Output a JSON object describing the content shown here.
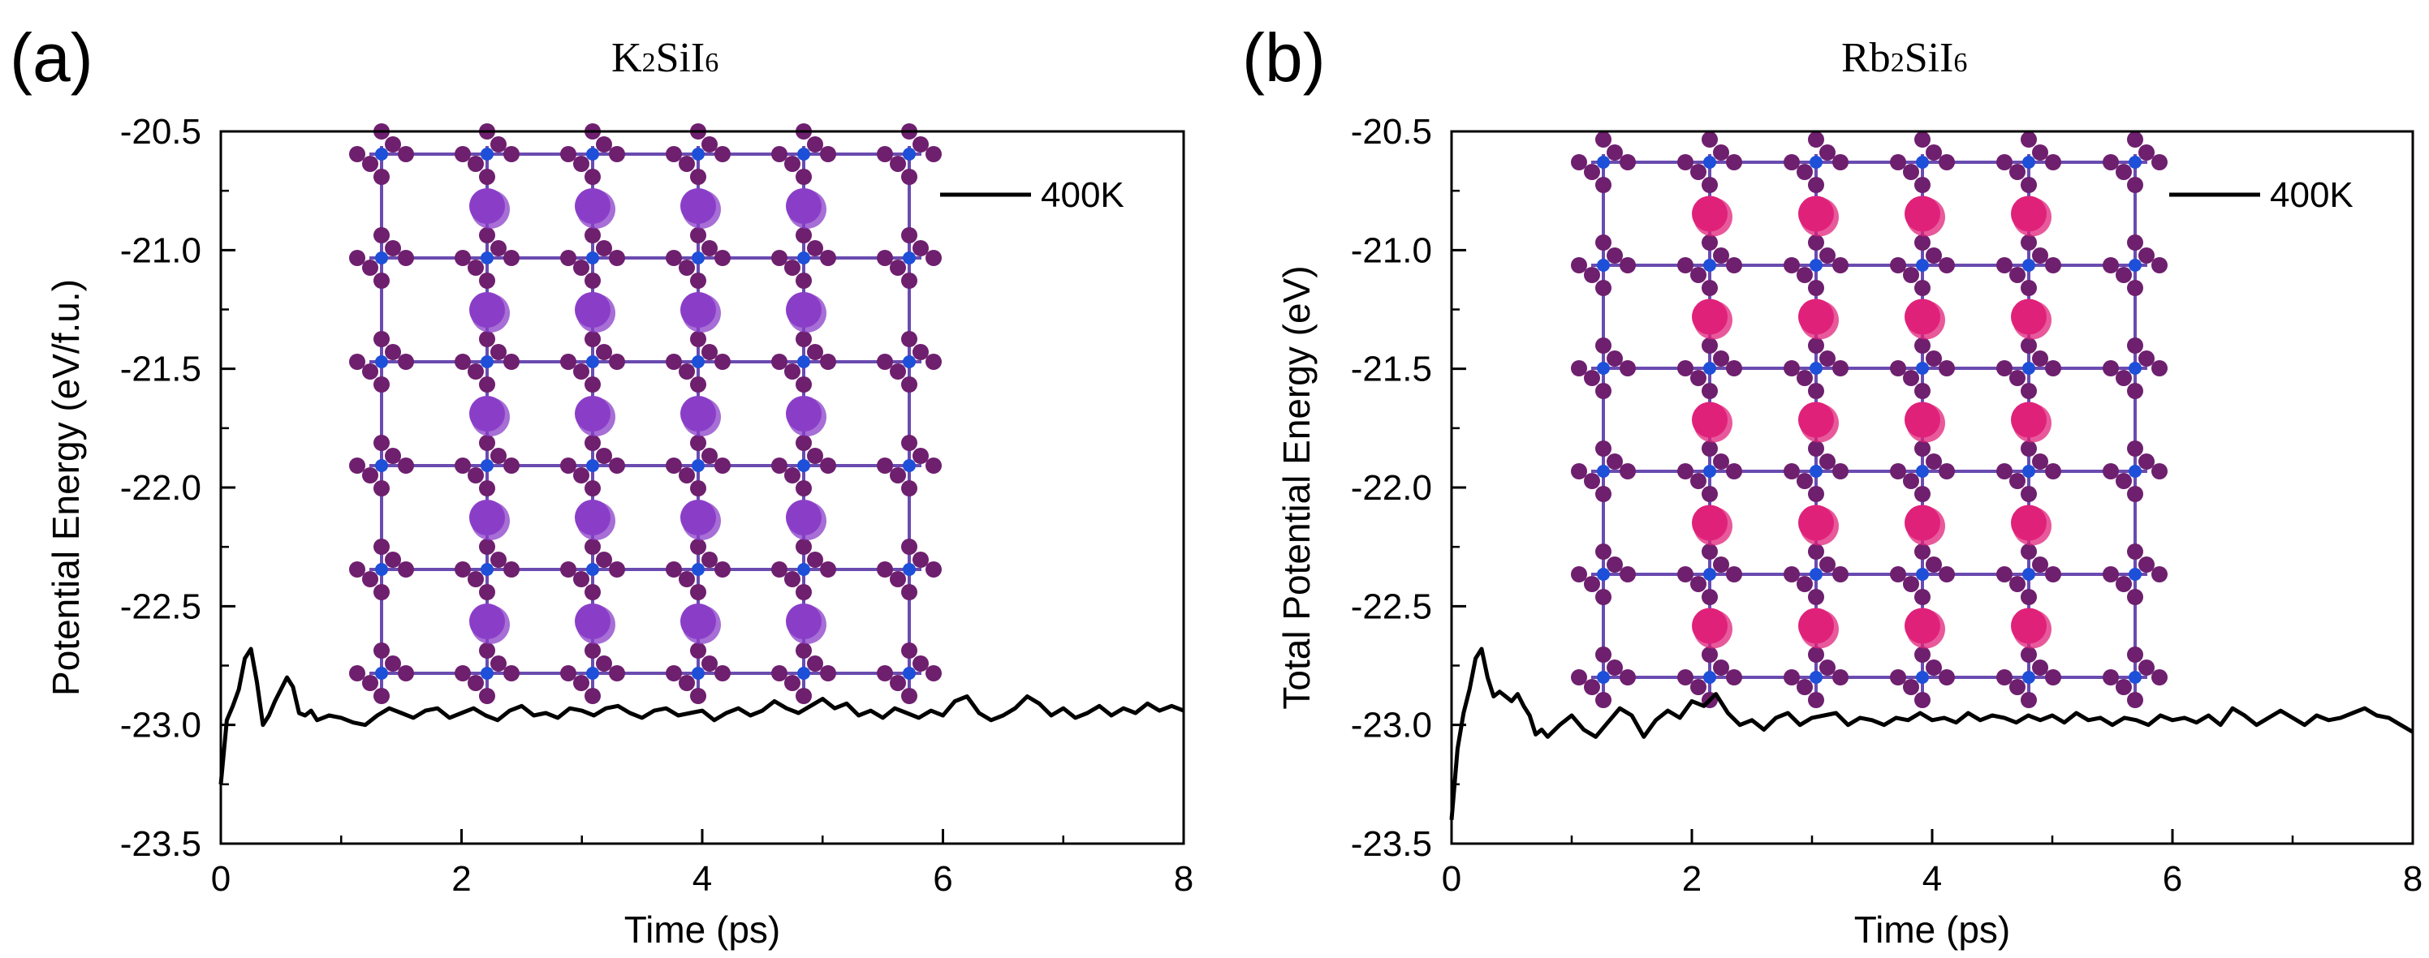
{
  "panels": [
    {
      "letter": "(a)",
      "title_main": "K",
      "title_sub1": "2",
      "title_mid": "SiI",
      "title_sub2": "6",
      "inset": "crystal-structure-image",
      "atom_color": "#8a3ec8"
    },
    {
      "letter": "(b)",
      "title_main": "Rb",
      "title_sub1": "2",
      "title_mid": "SiI",
      "title_sub2": "6",
      "inset": "crystal-structure-image",
      "atom_color": "#e0217a"
    }
  ],
  "chart_data": [
    {
      "type": "line",
      "title": "K2SiI6",
      "xlabel": "Time (ps)",
      "ylabel": "Potential Energy (eV/f.u.)",
      "xlim": [
        0,
        8
      ],
      "ylim": [
        -23.5,
        -20.5
      ],
      "xticks": [
        "0",
        "2",
        "4",
        "6",
        "8"
      ],
      "yticks": [
        "-20.5",
        "-21.0",
        "-21.5",
        "-22.0",
        "-22.5",
        "-23.0",
        "-23.5"
      ],
      "series": [
        {
          "name": "400K",
          "color": "#000000",
          "x": [
            0.0,
            0.05,
            0.1,
            0.15,
            0.2,
            0.25,
            0.3,
            0.35,
            0.4,
            0.45,
            0.5,
            0.55,
            0.6,
            0.65,
            0.7,
            0.75,
            0.8,
            0.9,
            1.0,
            1.1,
            1.2,
            1.3,
            1.4,
            1.5,
            1.6,
            1.7,
            1.8,
            1.9,
            2.0,
            2.1,
            2.2,
            2.3,
            2.4,
            2.5,
            2.6,
            2.7,
            2.8,
            2.9,
            3.0,
            3.1,
            3.2,
            3.3,
            3.4,
            3.5,
            3.6,
            3.7,
            3.8,
            3.9,
            4.0,
            4.1,
            4.2,
            4.3,
            4.4,
            4.5,
            4.6,
            4.7,
            4.8,
            4.9,
            5.0,
            5.1,
            5.2,
            5.3,
            5.4,
            5.5,
            5.6,
            5.7,
            5.8,
            5.9,
            6.0,
            6.1,
            6.2,
            6.3,
            6.4,
            6.5,
            6.6,
            6.7,
            6.8,
            6.9,
            7.0,
            7.1,
            7.2,
            7.3,
            7.4,
            7.5,
            7.6,
            7.7,
            7.8,
            7.9,
            8.0
          ],
          "y": [
            -23.25,
            -22.98,
            -22.92,
            -22.85,
            -22.72,
            -22.68,
            -22.82,
            -23.0,
            -22.96,
            -22.9,
            -22.85,
            -22.8,
            -22.84,
            -22.95,
            -22.96,
            -22.94,
            -22.98,
            -22.96,
            -22.97,
            -22.99,
            -23.0,
            -22.96,
            -22.93,
            -22.95,
            -22.97,
            -22.94,
            -22.93,
            -22.97,
            -22.95,
            -22.93,
            -22.96,
            -22.98,
            -22.94,
            -22.92,
            -22.96,
            -22.95,
            -22.97,
            -22.93,
            -22.94,
            -22.96,
            -22.93,
            -22.92,
            -22.95,
            -22.97,
            -22.94,
            -22.93,
            -22.96,
            -22.95,
            -22.94,
            -22.98,
            -22.95,
            -22.93,
            -22.96,
            -22.94,
            -22.9,
            -22.93,
            -22.95,
            -22.92,
            -22.89,
            -22.93,
            -22.91,
            -22.96,
            -22.94,
            -22.97,
            -22.93,
            -22.95,
            -22.97,
            -22.94,
            -22.96,
            -22.9,
            -22.88,
            -22.95,
            -22.98,
            -22.96,
            -22.93,
            -22.88,
            -22.91,
            -22.96,
            -22.93,
            -22.97,
            -22.95,
            -22.92,
            -22.96,
            -22.93,
            -22.95,
            -22.91,
            -22.94,
            -22.92,
            -22.94
          ]
        }
      ],
      "legend": "top-right",
      "grid": false
    },
    {
      "type": "line",
      "title": "Rb2SiI6",
      "xlabel": "Time (ps)",
      "ylabel": "Total Potential Energy (eV)",
      "xlim": [
        0,
        8
      ],
      "ylim": [
        -23.5,
        -20.5
      ],
      "xticks": [
        "0",
        "2",
        "4",
        "6",
        "8"
      ],
      "yticks": [
        "-20.5",
        "-21.0",
        "-21.5",
        "-22.0",
        "-22.5",
        "-23.0",
        "-23.5"
      ],
      "series": [
        {
          "name": "400K",
          "color": "#000000",
          "x": [
            0.0,
            0.05,
            0.1,
            0.15,
            0.2,
            0.25,
            0.3,
            0.35,
            0.4,
            0.45,
            0.5,
            0.55,
            0.6,
            0.65,
            0.7,
            0.75,
            0.8,
            0.9,
            1.0,
            1.1,
            1.2,
            1.3,
            1.4,
            1.5,
            1.6,
            1.7,
            1.8,
            1.9,
            2.0,
            2.1,
            2.2,
            2.3,
            2.4,
            2.5,
            2.6,
            2.7,
            2.8,
            2.9,
            3.0,
            3.1,
            3.2,
            3.3,
            3.4,
            3.5,
            3.6,
            3.7,
            3.8,
            3.9,
            4.0,
            4.1,
            4.2,
            4.3,
            4.4,
            4.5,
            4.6,
            4.7,
            4.8,
            4.9,
            5.0,
            5.1,
            5.2,
            5.3,
            5.4,
            5.5,
            5.6,
            5.7,
            5.8,
            5.9,
            6.0,
            6.1,
            6.2,
            6.3,
            6.4,
            6.5,
            6.6,
            6.7,
            6.8,
            6.9,
            7.0,
            7.1,
            7.2,
            7.3,
            7.4,
            7.5,
            7.6,
            7.7,
            7.8,
            7.9,
            8.0
          ],
          "y": [
            -23.4,
            -23.1,
            -22.95,
            -22.85,
            -22.72,
            -22.68,
            -22.8,
            -22.88,
            -22.86,
            -22.88,
            -22.9,
            -22.87,
            -22.92,
            -22.96,
            -23.04,
            -23.02,
            -23.05,
            -23.0,
            -22.96,
            -23.02,
            -23.05,
            -22.99,
            -22.93,
            -22.96,
            -23.05,
            -22.98,
            -22.94,
            -22.97,
            -22.9,
            -22.92,
            -22.87,
            -22.95,
            -23.0,
            -22.98,
            -23.02,
            -22.97,
            -22.95,
            -23.0,
            -22.97,
            -22.96,
            -22.95,
            -23.0,
            -22.97,
            -22.98,
            -23.0,
            -22.97,
            -22.98,
            -22.95,
            -22.98,
            -22.97,
            -22.99,
            -22.95,
            -22.98,
            -22.96,
            -22.97,
            -22.99,
            -22.96,
            -22.98,
            -22.96,
            -22.99,
            -22.95,
            -22.98,
            -22.97,
            -23.0,
            -22.97,
            -22.98,
            -23.0,
            -22.96,
            -22.98,
            -22.97,
            -22.99,
            -22.96,
            -23.0,
            -22.93,
            -22.96,
            -23.0,
            -22.97,
            -22.94,
            -22.97,
            -23.0,
            -22.96,
            -22.98,
            -22.97,
            -22.95,
            -22.93,
            -22.96,
            -22.97,
            -23.0,
            -23.03
          ]
        }
      ],
      "legend": "top-right",
      "grid": false
    }
  ]
}
